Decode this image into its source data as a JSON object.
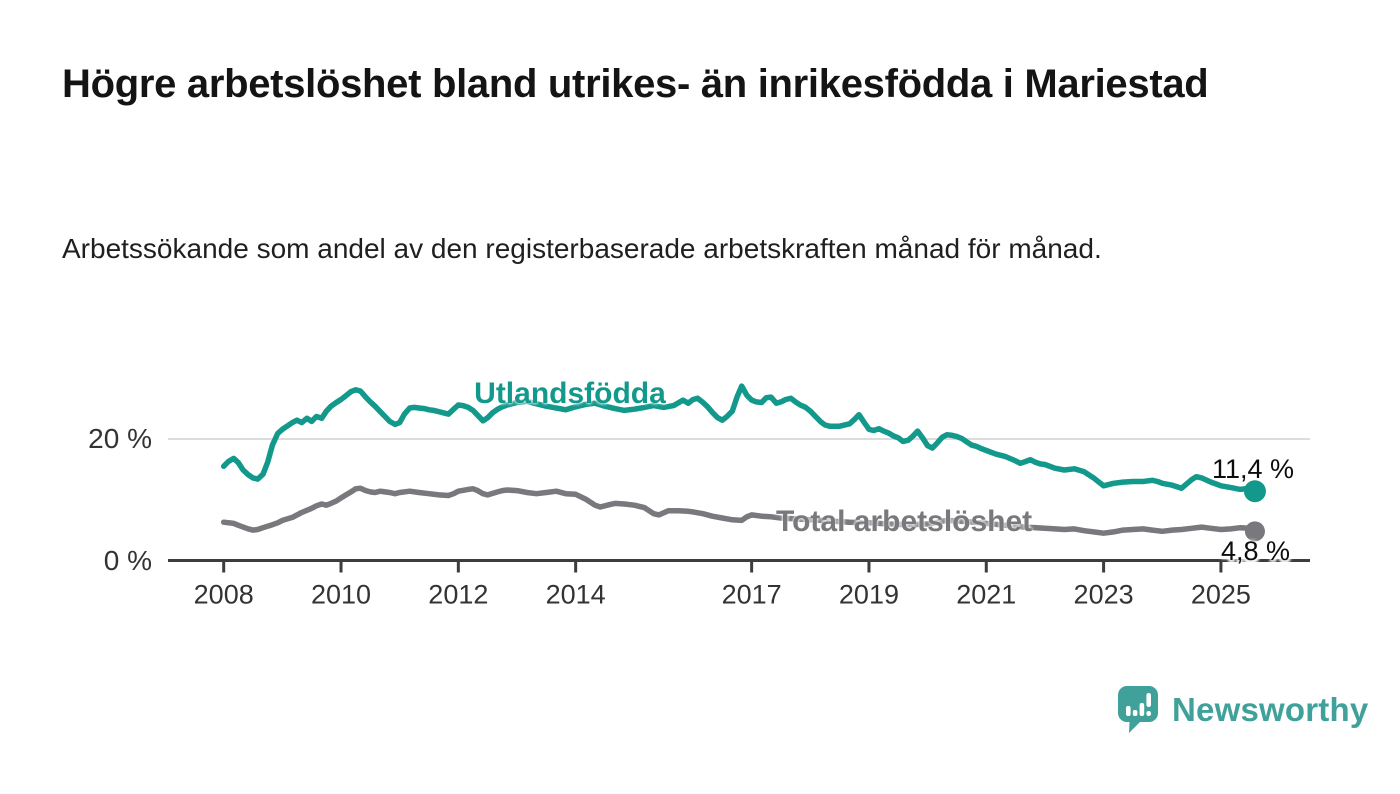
{
  "title": "Högre arbetslöshet bland utrikes- än inrikesfödda i Mariestad",
  "subtitle": "Arbetssökande som andel av den registerbaserade arbetskraften månad för månad.",
  "footer": {
    "brand": "Newsworthy"
  },
  "colors": {
    "series_foreign_born": "#12998b",
    "series_total": "#78787d",
    "axis": "#3d3d3d",
    "gridline": "#dcdcdc",
    "logo_teal": "#3fa19a"
  },
  "chart_data": {
    "type": "line",
    "title": "Högre arbetslöshet bland utrikes- än inrikesfödda i Mariestad",
    "subtitle": "Arbetssökande som andel av den registerbaserade arbetskraften månad för månad.",
    "unit": "%",
    "grid": "horizontal-only",
    "legend_position": "inline-labels-on-lines",
    "x_axis": {
      "ticks": [
        2008,
        2010,
        2012,
        2014,
        2017,
        2019,
        2021,
        2023,
        2025
      ],
      "range": [
        2008.0,
        2025.58
      ]
    },
    "y_axis": {
      "ticks": [
        {
          "value": 0,
          "label": "0 %"
        },
        {
          "value": 20,
          "label": "20 %"
        }
      ],
      "range": [
        0,
        30
      ]
    },
    "series": [
      {
        "name": "Utlandsfödda",
        "color": "#12998b",
        "end_value_label": "11,4 %",
        "last_value": 11.4,
        "points": [
          [
            2008.0,
            15.5
          ],
          [
            2008.08,
            16.3
          ],
          [
            2008.17,
            16.8
          ],
          [
            2008.25,
            16.1
          ],
          [
            2008.33,
            14.9
          ],
          [
            2008.42,
            14.1
          ],
          [
            2008.5,
            13.6
          ],
          [
            2008.58,
            13.4
          ],
          [
            2008.67,
            14.2
          ],
          [
            2008.75,
            16.2
          ],
          [
            2008.83,
            19.0
          ],
          [
            2008.92,
            20.9
          ],
          [
            2009.0,
            21.6
          ],
          [
            2009.17,
            22.7
          ],
          [
            2009.25,
            23.1
          ],
          [
            2009.33,
            22.7
          ],
          [
            2009.42,
            23.4
          ],
          [
            2009.5,
            22.9
          ],
          [
            2009.58,
            23.7
          ],
          [
            2009.67,
            23.4
          ],
          [
            2009.75,
            24.6
          ],
          [
            2009.83,
            25.4
          ],
          [
            2009.92,
            26.0
          ],
          [
            2010.0,
            26.5
          ],
          [
            2010.08,
            27.1
          ],
          [
            2010.17,
            27.8
          ],
          [
            2010.25,
            28.1
          ],
          [
            2010.33,
            27.9
          ],
          [
            2010.42,
            26.9
          ],
          [
            2010.5,
            26.1
          ],
          [
            2010.58,
            25.4
          ],
          [
            2010.67,
            24.5
          ],
          [
            2010.75,
            23.7
          ],
          [
            2010.83,
            22.9
          ],
          [
            2010.92,
            22.4
          ],
          [
            2011.0,
            22.7
          ],
          [
            2011.08,
            24.1
          ],
          [
            2011.17,
            25.1
          ],
          [
            2011.25,
            25.2
          ],
          [
            2011.33,
            25.1
          ],
          [
            2011.42,
            25.0
          ],
          [
            2011.5,
            24.8
          ],
          [
            2011.58,
            24.7
          ],
          [
            2011.67,
            24.5
          ],
          [
            2011.75,
            24.3
          ],
          [
            2011.83,
            24.1
          ],
          [
            2011.92,
            24.9
          ],
          [
            2012.0,
            25.6
          ],
          [
            2012.08,
            25.5
          ],
          [
            2012.17,
            25.2
          ],
          [
            2012.25,
            24.7
          ],
          [
            2012.33,
            23.9
          ],
          [
            2012.42,
            23.0
          ],
          [
            2012.5,
            23.5
          ],
          [
            2012.58,
            24.3
          ],
          [
            2012.67,
            24.9
          ],
          [
            2012.75,
            25.3
          ],
          [
            2012.83,
            25.6
          ],
          [
            2013.0,
            26.0
          ],
          [
            2013.17,
            26.2
          ],
          [
            2013.33,
            25.8
          ],
          [
            2013.5,
            25.4
          ],
          [
            2013.67,
            25.1
          ],
          [
            2013.83,
            24.8
          ],
          [
            2014.0,
            25.3
          ],
          [
            2014.17,
            25.7
          ],
          [
            2014.33,
            25.9
          ],
          [
            2014.5,
            25.4
          ],
          [
            2014.67,
            25.0
          ],
          [
            2014.83,
            24.7
          ],
          [
            2015.0,
            24.9
          ],
          [
            2015.17,
            25.2
          ],
          [
            2015.33,
            25.5
          ],
          [
            2015.5,
            25.2
          ],
          [
            2015.67,
            25.5
          ],
          [
            2015.83,
            26.4
          ],
          [
            2015.92,
            25.9
          ],
          [
            2016.0,
            26.5
          ],
          [
            2016.08,
            26.7
          ],
          [
            2016.17,
            26.0
          ],
          [
            2016.25,
            25.3
          ],
          [
            2016.33,
            24.4
          ],
          [
            2016.42,
            23.5
          ],
          [
            2016.5,
            23.1
          ],
          [
            2016.58,
            23.7
          ],
          [
            2016.67,
            24.6
          ],
          [
            2016.75,
            26.9
          ],
          [
            2016.83,
            28.7
          ],
          [
            2016.92,
            27.2
          ],
          [
            2017.0,
            26.4
          ],
          [
            2017.08,
            26.1
          ],
          [
            2017.17,
            26.0
          ],
          [
            2017.25,
            26.8
          ],
          [
            2017.33,
            26.9
          ],
          [
            2017.42,
            25.9
          ],
          [
            2017.5,
            26.1
          ],
          [
            2017.58,
            26.5
          ],
          [
            2017.67,
            26.7
          ],
          [
            2017.75,
            26.1
          ],
          [
            2017.83,
            25.6
          ],
          [
            2017.92,
            25.2
          ],
          [
            2018.0,
            24.6
          ],
          [
            2018.08,
            23.8
          ],
          [
            2018.17,
            22.9
          ],
          [
            2018.25,
            22.3
          ],
          [
            2018.33,
            22.1
          ],
          [
            2018.5,
            22.1
          ],
          [
            2018.67,
            22.5
          ],
          [
            2018.75,
            23.2
          ],
          [
            2018.83,
            24.0
          ],
          [
            2018.92,
            22.7
          ],
          [
            2019.0,
            21.6
          ],
          [
            2019.08,
            21.4
          ],
          [
            2019.17,
            21.7
          ],
          [
            2019.25,
            21.3
          ],
          [
            2019.33,
            21.0
          ],
          [
            2019.42,
            20.5
          ],
          [
            2019.5,
            20.2
          ],
          [
            2019.58,
            19.6
          ],
          [
            2019.67,
            19.8
          ],
          [
            2019.75,
            20.5
          ],
          [
            2019.83,
            21.3
          ],
          [
            2019.92,
            20.1
          ],
          [
            2020.0,
            18.9
          ],
          [
            2020.08,
            18.5
          ],
          [
            2020.17,
            19.4
          ],
          [
            2020.25,
            20.3
          ],
          [
            2020.33,
            20.7
          ],
          [
            2020.42,
            20.6
          ],
          [
            2020.5,
            20.4
          ],
          [
            2020.58,
            20.1
          ],
          [
            2020.67,
            19.5
          ],
          [
            2020.75,
            19.0
          ],
          [
            2020.83,
            18.8
          ],
          [
            2020.92,
            18.4
          ],
          [
            2021.0,
            18.1
          ],
          [
            2021.17,
            17.5
          ],
          [
            2021.33,
            17.1
          ],
          [
            2021.5,
            16.4
          ],
          [
            2021.58,
            16.0
          ],
          [
            2021.67,
            16.3
          ],
          [
            2021.75,
            16.6
          ],
          [
            2021.83,
            16.2
          ],
          [
            2021.92,
            15.9
          ],
          [
            2022.0,
            15.8
          ],
          [
            2022.17,
            15.2
          ],
          [
            2022.33,
            14.9
          ],
          [
            2022.5,
            15.1
          ],
          [
            2022.67,
            14.6
          ],
          [
            2022.83,
            13.6
          ],
          [
            2022.92,
            12.9
          ],
          [
            2023.0,
            12.3
          ],
          [
            2023.17,
            12.7
          ],
          [
            2023.33,
            12.9
          ],
          [
            2023.5,
            13.0
          ],
          [
            2023.67,
            13.0
          ],
          [
            2023.83,
            13.2
          ],
          [
            2023.92,
            13.0
          ],
          [
            2024.0,
            12.7
          ],
          [
            2024.17,
            12.4
          ],
          [
            2024.33,
            11.9
          ],
          [
            2024.5,
            13.3
          ],
          [
            2024.58,
            13.8
          ],
          [
            2024.67,
            13.6
          ],
          [
            2024.83,
            12.9
          ],
          [
            2024.92,
            12.6
          ],
          [
            2025.0,
            12.3
          ],
          [
            2025.17,
            12.0
          ],
          [
            2025.33,
            11.7
          ],
          [
            2025.5,
            11.9
          ],
          [
            2025.58,
            11.4
          ]
        ]
      },
      {
        "name": "Total arbetslöshet",
        "color": "#78787d",
        "end_value_label": "4,8 %",
        "last_value": 4.8,
        "points": [
          [
            2008.0,
            6.3
          ],
          [
            2008.17,
            6.1
          ],
          [
            2008.25,
            5.8
          ],
          [
            2008.42,
            5.2
          ],
          [
            2008.5,
            5.0
          ],
          [
            2008.58,
            5.1
          ],
          [
            2008.67,
            5.4
          ],
          [
            2008.83,
            5.9
          ],
          [
            2008.92,
            6.2
          ],
          [
            2009.0,
            6.6
          ],
          [
            2009.17,
            7.1
          ],
          [
            2009.33,
            7.9
          ],
          [
            2009.5,
            8.6
          ],
          [
            2009.58,
            9.0
          ],
          [
            2009.67,
            9.3
          ],
          [
            2009.75,
            9.1
          ],
          [
            2009.83,
            9.4
          ],
          [
            2009.92,
            9.8
          ],
          [
            2010.0,
            10.3
          ],
          [
            2010.17,
            11.3
          ],
          [
            2010.25,
            11.8
          ],
          [
            2010.33,
            11.9
          ],
          [
            2010.42,
            11.5
          ],
          [
            2010.5,
            11.3
          ],
          [
            2010.58,
            11.2
          ],
          [
            2010.67,
            11.4
          ],
          [
            2010.75,
            11.3
          ],
          [
            2010.83,
            11.2
          ],
          [
            2010.92,
            11.0
          ],
          [
            2011.0,
            11.2
          ],
          [
            2011.17,
            11.4
          ],
          [
            2011.33,
            11.2
          ],
          [
            2011.5,
            11.0
          ],
          [
            2011.67,
            10.8
          ],
          [
            2011.83,
            10.7
          ],
          [
            2011.92,
            11.0
          ],
          [
            2012.0,
            11.4
          ],
          [
            2012.17,
            11.7
          ],
          [
            2012.25,
            11.8
          ],
          [
            2012.33,
            11.5
          ],
          [
            2012.42,
            11.0
          ],
          [
            2012.5,
            10.8
          ],
          [
            2012.67,
            11.3
          ],
          [
            2012.75,
            11.5
          ],
          [
            2012.83,
            11.6
          ],
          [
            2013.0,
            11.5
          ],
          [
            2013.17,
            11.2
          ],
          [
            2013.33,
            11.0
          ],
          [
            2013.5,
            11.2
          ],
          [
            2013.67,
            11.4
          ],
          [
            2013.83,
            11.0
          ],
          [
            2014.0,
            10.9
          ],
          [
            2014.17,
            10.1
          ],
          [
            2014.33,
            9.1
          ],
          [
            2014.42,
            8.8
          ],
          [
            2014.58,
            9.2
          ],
          [
            2014.67,
            9.4
          ],
          [
            2014.83,
            9.3
          ],
          [
            2015.0,
            9.1
          ],
          [
            2015.17,
            8.7
          ],
          [
            2015.33,
            7.7
          ],
          [
            2015.42,
            7.5
          ],
          [
            2015.58,
            8.2
          ],
          [
            2015.75,
            8.2
          ],
          [
            2015.92,
            8.1
          ],
          [
            2016.0,
            8.0
          ],
          [
            2016.17,
            7.7
          ],
          [
            2016.33,
            7.3
          ],
          [
            2016.5,
            7.0
          ],
          [
            2016.67,
            6.7
          ],
          [
            2016.83,
            6.6
          ],
          [
            2016.92,
            7.2
          ],
          [
            2017.0,
            7.5
          ],
          [
            2017.17,
            7.3
          ],
          [
            2017.33,
            7.2
          ],
          [
            2017.5,
            7.0
          ],
          [
            2017.67,
            6.9
          ],
          [
            2017.83,
            6.8
          ],
          [
            2018.0,
            6.7
          ],
          [
            2018.33,
            6.5
          ],
          [
            2018.67,
            6.3
          ],
          [
            2019.0,
            6.2
          ],
          [
            2019.33,
            6.0
          ],
          [
            2019.67,
            5.9
          ],
          [
            2020.0,
            6.0
          ],
          [
            2020.33,
            6.6
          ],
          [
            2020.67,
            6.4
          ],
          [
            2021.0,
            6.1
          ],
          [
            2021.33,
            5.8
          ],
          [
            2021.67,
            5.5
          ],
          [
            2022.0,
            5.3
          ],
          [
            2022.17,
            5.2
          ],
          [
            2022.33,
            5.1
          ],
          [
            2022.5,
            5.2
          ],
          [
            2022.67,
            4.9
          ],
          [
            2022.83,
            4.7
          ],
          [
            2023.0,
            4.5
          ],
          [
            2023.17,
            4.7
          ],
          [
            2023.33,
            5.0
          ],
          [
            2023.5,
            5.1
          ],
          [
            2023.67,
            5.2
          ],
          [
            2023.83,
            5.0
          ],
          [
            2024.0,
            4.8
          ],
          [
            2024.17,
            5.0
          ],
          [
            2024.33,
            5.1
          ],
          [
            2024.5,
            5.3
          ],
          [
            2024.67,
            5.5
          ],
          [
            2024.83,
            5.3
          ],
          [
            2025.0,
            5.1
          ],
          [
            2025.17,
            5.2
          ],
          [
            2025.33,
            5.4
          ],
          [
            2025.5,
            5.3
          ],
          [
            2025.58,
            4.8
          ]
        ]
      }
    ]
  }
}
